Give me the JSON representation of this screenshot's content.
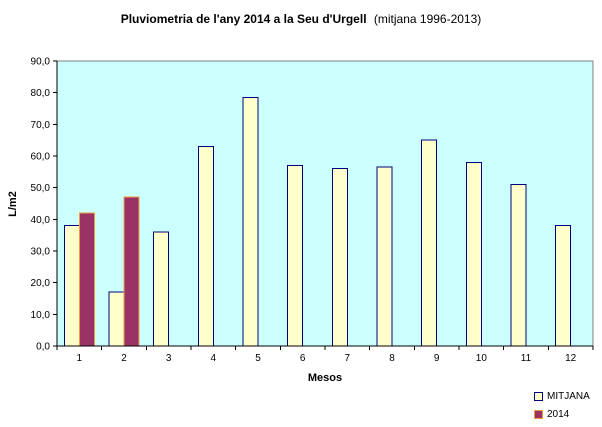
{
  "title": {
    "main": "Pluviometria de l'any 2014 a la Seu d'Urgell",
    "sub": "(mitjana 1996-2013)"
  },
  "chart_data": {
    "type": "bar",
    "title": "Pluviometria de l'any 2014 a la Seu d'Urgell (mitjana 1996-2013)",
    "xlabel": "Mesos",
    "ylabel": "L/m2",
    "categories": [
      "1",
      "2",
      "3",
      "4",
      "5",
      "6",
      "7",
      "8",
      "9",
      "10",
      "11",
      "12"
    ],
    "series": [
      {
        "name": "MITJANA",
        "values": [
          38,
          17,
          36,
          63,
          78.5,
          57,
          56,
          56.5,
          65,
          58,
          51,
          38
        ],
        "fill": "#FFFFCC",
        "stroke": "#000080"
      },
      {
        "name": "2014",
        "values": [
          42,
          47,
          null,
          null,
          null,
          null,
          null,
          null,
          null,
          null,
          null,
          null
        ],
        "fill": "#993366",
        "stroke": "#ED9C40"
      }
    ],
    "ylim": [
      0,
      90
    ],
    "ytick_step": 10,
    "y_tick_labels": [
      "0,0",
      "10,0",
      "20,0",
      "30,0",
      "40,0",
      "50,0",
      "60,0",
      "70,0",
      "80,0",
      "90,0"
    ],
    "grid": false,
    "legend_position": "bottom-right",
    "plot_bg": "#CCFFFF",
    "plot_border": "#808080",
    "axis_color": "#000000"
  }
}
